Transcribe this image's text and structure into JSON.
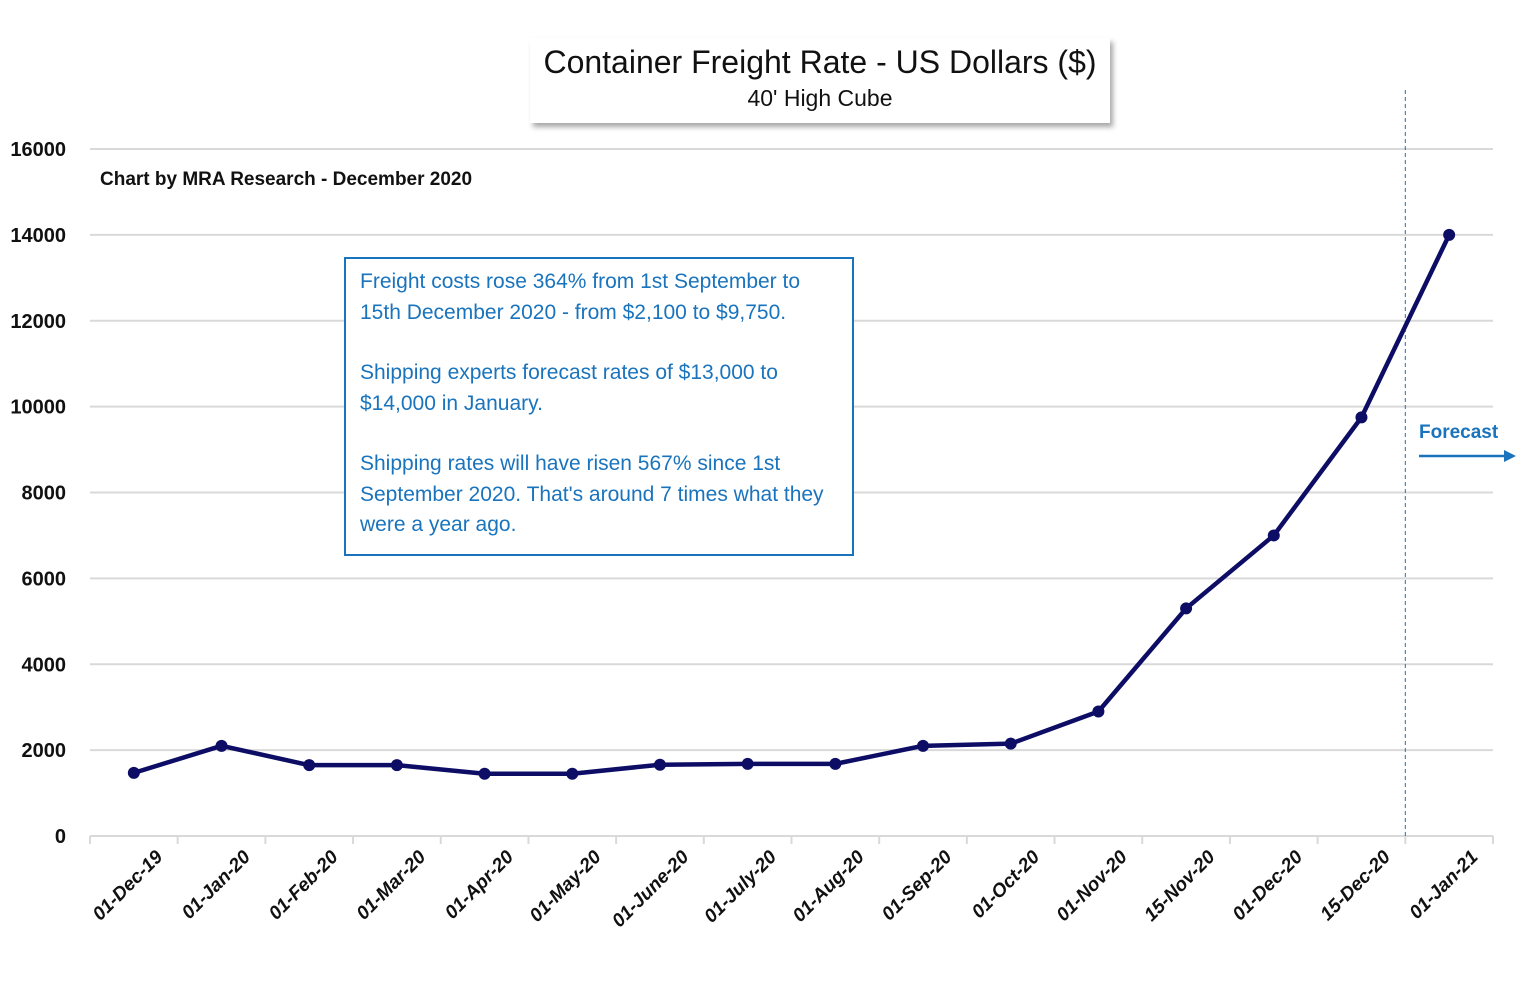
{
  "chart_data": {
    "type": "line",
    "title": "Container Freight Rate - US Dollars ($)",
    "subtitle": "40' High Cube",
    "credit": "Chart by MRA Research - December 2020",
    "categories": [
      "01-Dec-19",
      "01-Jan-20",
      "01-Feb-20",
      "01-Mar-20",
      "01-Apr-20",
      "01-May-20",
      "01-June-20",
      "01-July-20",
      "01-Aug-20",
      "01-Sep-20",
      "01-Oct-20",
      "01-Nov-20",
      "15-Nov-20",
      "01-Dec-20",
      "15-Dec-20",
      "01-Jan-21"
    ],
    "values": [
      1470,
      2100,
      1650,
      1650,
      1450,
      1450,
      1660,
      1680,
      1680,
      2100,
      2150,
      2900,
      5300,
      7000,
      9750,
      14000
    ],
    "ylim": [
      0,
      16000
    ],
    "yticks": [
      0,
      2000,
      4000,
      6000,
      8000,
      10000,
      12000,
      14000,
      16000
    ],
    "grid": true,
    "line_color": "#0d0d66",
    "accent_color": "#1a74bd",
    "forecast_label": "Forecast",
    "forecast_divider_after": "15-Dec-20",
    "annotation": [
      "Freight costs rose 364% from 1st September to 15th December 2020 - from $2,100 to $9,750.",
      "Shipping experts forecast rates of $13,000 to $14,000 in January.",
      "Shipping rates will have risen 567% since 1st September 2020. That's around 7 times what they were a year ago."
    ]
  }
}
